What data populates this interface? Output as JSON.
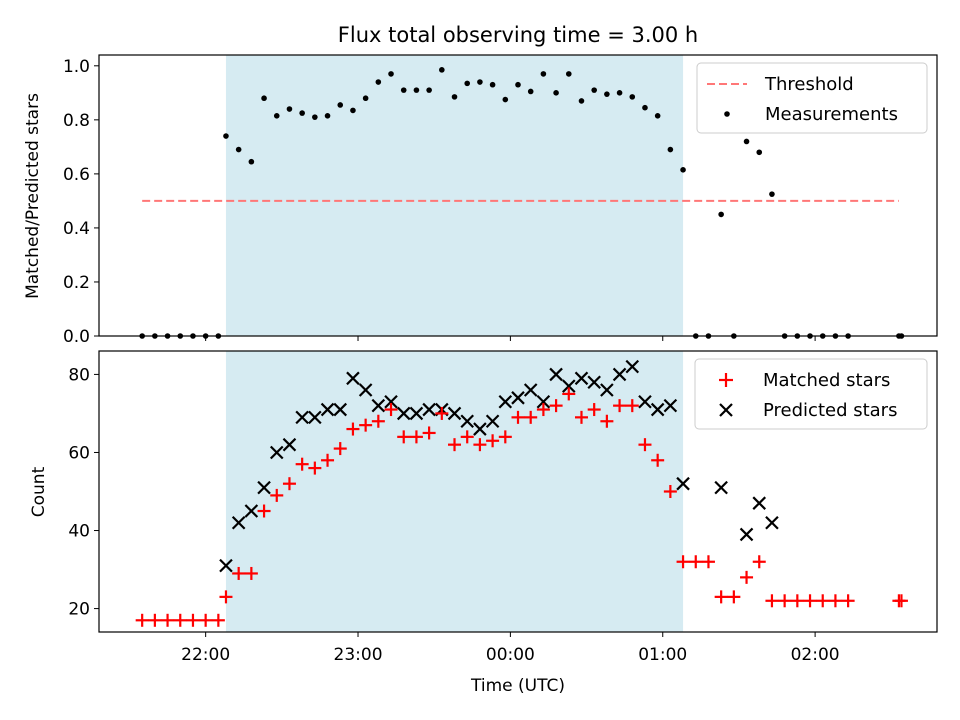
{
  "figure_title": "Flux total observing time = 3.00 h",
  "colors": {
    "threshold": "#ff7777",
    "measurement": "#000000",
    "matched": "#ff0000",
    "predicted": "#000000",
    "span_fill": "#add8e6"
  },
  "chart_data": [
    {
      "type": "scatter",
      "title": "Flux total observing time = 3.00 h",
      "xlabel": "",
      "ylabel": "Matched/Predicted stars",
      "xlim": [
        "21:18",
        "02:48"
      ],
      "ylim": [
        0,
        1.04
      ],
      "yticks": [
        "0.0",
        "0.2",
        "0.4",
        "0.6",
        "0.8",
        "1.0"
      ],
      "ytick_values": [
        0,
        0.2,
        0.4,
        0.6,
        0.8,
        1.0
      ],
      "shaded_span": [
        "22:08",
        "01:08"
      ],
      "legend_position": "top-right",
      "legend": [
        "Threshold",
        "Measurements"
      ],
      "threshold": {
        "name": "Threshold",
        "y": 0.5,
        "x_range": [
          "21:35",
          "02:33"
        ]
      },
      "series": [
        {
          "name": "Measurements",
          "x": [
            "21:35",
            "21:40",
            "21:45",
            "21:50",
            "21:55",
            "22:00",
            "22:05",
            "22:08",
            "22:13",
            "22:18",
            "22:23",
            "22:28",
            "22:33",
            "22:38",
            "22:43",
            "22:48",
            "22:53",
            "22:58",
            "23:03",
            "23:08",
            "23:13",
            "23:18",
            "23:23",
            "23:28",
            "23:33",
            "23:38",
            "23:43",
            "23:48",
            "23:53",
            "23:58",
            "00:03",
            "00:08",
            "00:13",
            "00:18",
            "00:23",
            "00:28",
            "00:33",
            "00:38",
            "00:43",
            "00:48",
            "00:53",
            "00:58",
            "01:03",
            "01:08",
            "01:13",
            "01:18",
            "01:23",
            "01:28",
            "01:33",
            "01:38",
            "01:43",
            "01:48",
            "01:53",
            "01:58",
            "02:03",
            "02:08",
            "02:13",
            "02:33",
            "02:34"
          ],
          "y": [
            0,
            0,
            0,
            0,
            0,
            0,
            0,
            0.74,
            0.69,
            0.645,
            0.88,
            0.815,
            0.84,
            0.825,
            0.81,
            0.815,
            0.855,
            0.835,
            0.88,
            0.94,
            0.97,
            0.91,
            0.91,
            0.91,
            0.985,
            0.885,
            0.935,
            0.94,
            0.93,
            0.875,
            0.93,
            0.905,
            0.97,
            0.9,
            0.97,
            0.87,
            0.91,
            0.895,
            0.9,
            0.885,
            0.845,
            0.815,
            0.69,
            0.615,
            0,
            0,
            0.45,
            0,
            0.72,
            0.68,
            0.525,
            0,
            0,
            0,
            0,
            0,
            0,
            0,
            0
          ]
        }
      ]
    },
    {
      "type": "scatter",
      "title": "",
      "xlabel": "Time (UTC)",
      "ylabel": "Count",
      "xlim": [
        "21:18",
        "02:48"
      ],
      "ylim": [
        14,
        86
      ],
      "yticks": [
        "20",
        "40",
        "60",
        "80"
      ],
      "ytick_values": [
        20,
        40,
        60,
        80
      ],
      "xticks": [
        "22:00",
        "23:00",
        "00:00",
        "01:00",
        "02:00"
      ],
      "xtick_values": [
        "22:00",
        "23:00",
        "00:00",
        "01:00",
        "02:00"
      ],
      "shaded_span": [
        "22:08",
        "01:08"
      ],
      "legend_position": "top-right",
      "legend": [
        "Matched stars",
        "Predicted stars"
      ],
      "series": [
        {
          "name": "Matched stars",
          "x": [
            "21:35",
            "21:40",
            "21:45",
            "21:50",
            "21:55",
            "22:00",
            "22:05",
            "22:08",
            "22:13",
            "22:18",
            "22:23",
            "22:28",
            "22:33",
            "22:38",
            "22:43",
            "22:48",
            "22:53",
            "22:58",
            "23:03",
            "23:08",
            "23:13",
            "23:18",
            "23:23",
            "23:28",
            "23:33",
            "23:38",
            "23:43",
            "23:48",
            "23:53",
            "23:58",
            "00:03",
            "00:08",
            "00:13",
            "00:18",
            "00:23",
            "00:28",
            "00:33",
            "00:38",
            "00:43",
            "00:48",
            "00:53",
            "00:58",
            "01:03",
            "01:08",
            "01:13",
            "01:18",
            "01:23",
            "01:28",
            "01:33",
            "01:38",
            "01:43",
            "01:48",
            "01:53",
            "01:58",
            "02:03",
            "02:08",
            "02:13",
            "02:33",
            "02:34"
          ],
          "y": [
            17,
            17,
            17,
            17,
            17,
            17,
            17,
            23,
            29,
            29,
            45,
            49,
            52,
            57,
            56,
            58,
            61,
            66,
            67,
            68,
            71,
            64,
            64,
            65,
            70,
            62,
            64,
            62,
            63,
            64,
            69,
            69,
            71,
            72,
            75,
            69,
            71,
            68,
            72,
            72,
            62,
            58,
            50,
            32,
            32,
            32,
            23,
            23,
            28,
            32,
            22,
            22,
            22,
            22,
            22,
            22,
            22,
            22,
            22
          ]
        },
        {
          "name": "Predicted stars",
          "x": [
            "22:08",
            "22:13",
            "22:18",
            "22:23",
            "22:28",
            "22:33",
            "22:38",
            "22:43",
            "22:48",
            "22:53",
            "22:58",
            "23:03",
            "23:08",
            "23:13",
            "23:18",
            "23:23",
            "23:28",
            "23:33",
            "23:38",
            "23:43",
            "23:48",
            "23:53",
            "23:58",
            "00:03",
            "00:08",
            "00:13",
            "00:18",
            "00:23",
            "00:28",
            "00:33",
            "00:38",
            "00:43",
            "00:48",
            "00:53",
            "00:58",
            "01:03",
            "01:08",
            "01:23",
            "01:33",
            "01:38",
            "01:43"
          ],
          "y": [
            31,
            42,
            45,
            51,
            60,
            62,
            69,
            69,
            71,
            71,
            79,
            76,
            72,
            73,
            70,
            70,
            71,
            71,
            70,
            68,
            66,
            68,
            73,
            74,
            76,
            73,
            80,
            77,
            79,
            78,
            76,
            80,
            82,
            73,
            71,
            72,
            52,
            51,
            39,
            47,
            42
          ]
        }
      ]
    }
  ]
}
